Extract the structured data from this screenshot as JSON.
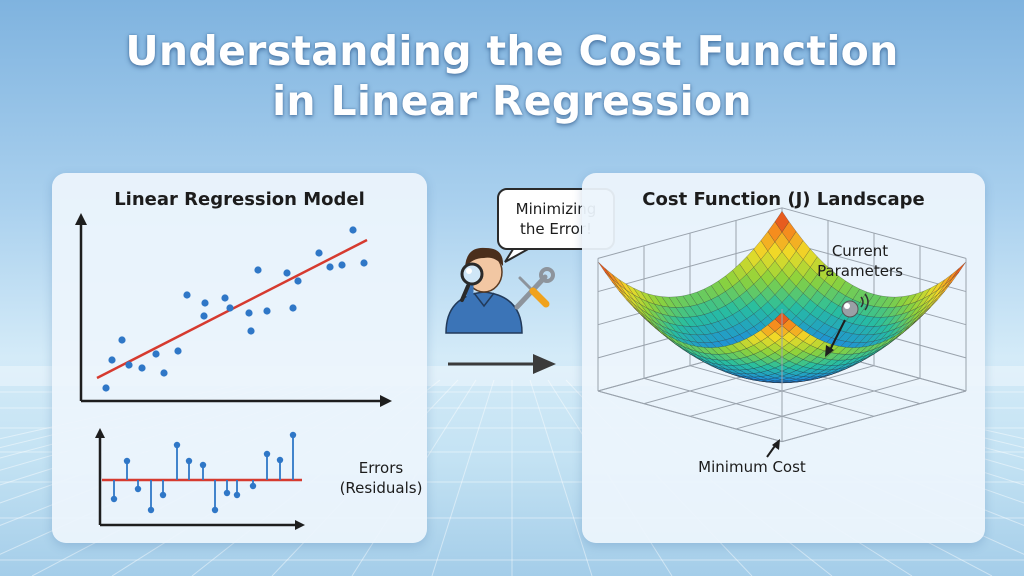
{
  "title": {
    "line1": "Understanding the Cost Function",
    "line2": "in Linear Regression"
  },
  "left_panel": {
    "title": "Linear Regression Model",
    "errors_label_line1": "Errors",
    "errors_label_line2": "(Residuals)"
  },
  "middle": {
    "bubble_line1": "Minimizing",
    "bubble_line2": "the Error!",
    "icons": [
      "person-icon",
      "magnifying-glass-icon",
      "wrench-icon",
      "screwdriver-icon",
      "arrow-right-icon"
    ]
  },
  "right_panel": {
    "title": "Cost Function (J) Landscape",
    "current_label_line1": "Current",
    "current_label_line2": "Parameters",
    "min_label": "Minimum Cost"
  },
  "colors": {
    "point": "#2f77c7",
    "regression_line": "#d63a2f",
    "axis": "#1e1e1e",
    "title_text": "#ffffff"
  }
}
